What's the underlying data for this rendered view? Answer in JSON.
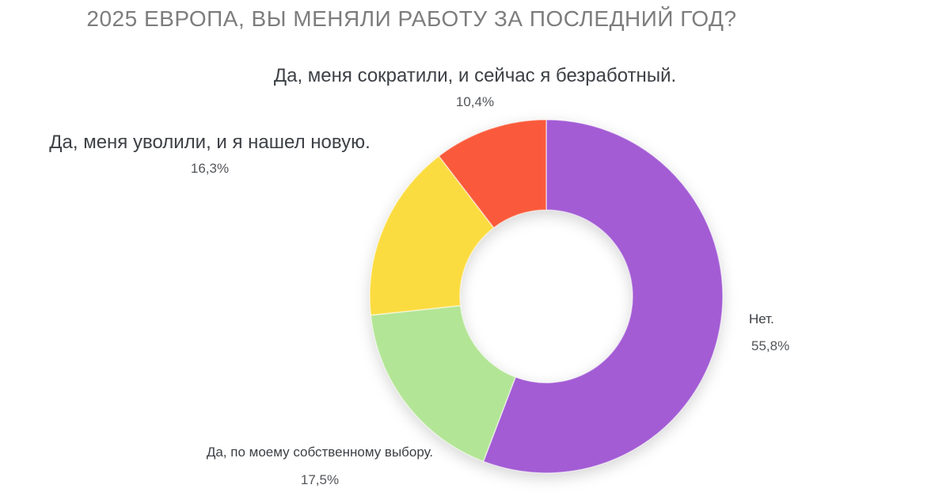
{
  "page": {
    "background_color": "#ffffff"
  },
  "chart_data": {
    "type": "pie",
    "subtype": "donut",
    "title": "2025 ЕВРОПА, ВЫ МЕНЯЛИ РАБОТУ ЗА ПОСЛЕДНИЙ ГОД?",
    "title_color": "#7d7d7d",
    "legend": "none",
    "grid": false,
    "start_angle_deg": 0,
    "direction": "clockwise",
    "inner_radius_ratio": 0.49,
    "slice_divider_color": "#ffffff",
    "slices": [
      {
        "key": "no",
        "label": "Нет.",
        "value_pct": 55.8,
        "display_pct": "55,8%",
        "color": "#a35cd4",
        "label_position": "right"
      },
      {
        "key": "own-choice",
        "label": "Да, по моему собственному выбору.",
        "value_pct": 17.5,
        "display_pct": "17,5%",
        "color": "#b3e596",
        "label_position": "bottom-left"
      },
      {
        "key": "fired-found-new",
        "label": "Да, меня уволили, и я нашел новую.",
        "value_pct": 16.3,
        "display_pct": "16,3%",
        "color": "#fbdc40",
        "label_position": "left"
      },
      {
        "key": "laid-off-unemployed",
        "label": "Да, меня сократили, и сейчас я безработный.",
        "value_pct": 10.4,
        "display_pct": "10,4%",
        "color": "#fa5a3b",
        "label_position": "top"
      }
    ]
  }
}
